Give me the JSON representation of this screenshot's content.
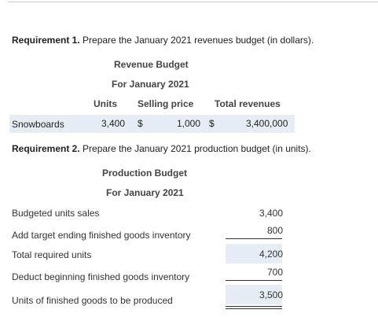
{
  "req1": {
    "prefix": "Requirement 1.",
    "text": " Prepare the January 2021 revenues budget (in dollars)."
  },
  "revenue_budget": {
    "title": "Revenue Budget",
    "period": "For January 2021",
    "columns": {
      "units": "Units",
      "selling_price": "Selling price",
      "total_revenues": "Total revenues"
    },
    "row": {
      "label": "Snowboards",
      "units": "3,400",
      "price_currency": "$",
      "price": "1,000",
      "total_currency": "$",
      "total": "3,400,000"
    }
  },
  "req2": {
    "prefix": "Requirement 2.",
    "text": " Prepare the January 2021 production budget (in units)."
  },
  "production_budget": {
    "title": "Production Budget",
    "period": "For January 2021",
    "rows": [
      {
        "label": "Budgeted units sales",
        "value": "3,400"
      },
      {
        "label": "Add target ending finished goods inventory",
        "value": "800"
      },
      {
        "label": "Total required units",
        "value": "4,200"
      },
      {
        "label": "Deduct beginning finished goods inventory",
        "value": "700"
      },
      {
        "label": "Units of finished goods to be produced",
        "value": "3,500"
      }
    ]
  },
  "colors": {
    "highlight": "#e6edf5",
    "heading_text": "#444444"
  }
}
